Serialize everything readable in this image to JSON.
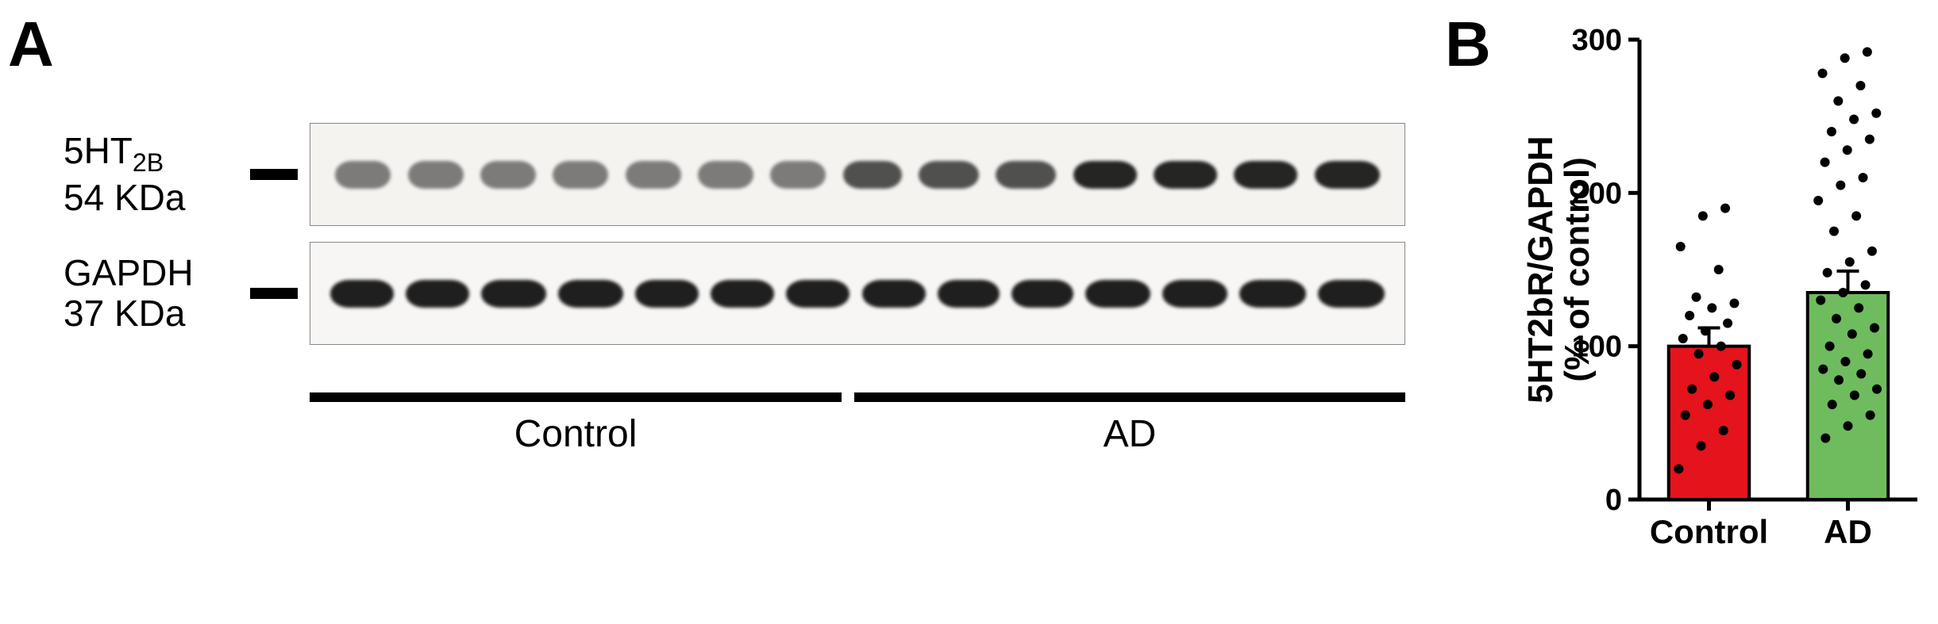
{
  "panelA": {
    "label": "A",
    "blots": [
      {
        "protein_html": "5HT<sub>2B</sub>",
        "mw": "54 KDa",
        "lane_count": 14,
        "intensities": [
          "light",
          "light",
          "light",
          "light",
          "light",
          "light",
          "light",
          "medium",
          "medium",
          "medium",
          "dark",
          "dark",
          "dark",
          "dark"
        ],
        "band_widths": [
          70,
          70,
          70,
          70,
          70,
          70,
          70,
          74,
          76,
          76,
          80,
          80,
          80,
          82
        ],
        "bg": "#f5f3f0",
        "band_color": "#1a1a1a"
      },
      {
        "protein_html": "GAPDH",
        "mw": "37 KDa",
        "lane_count": 14,
        "intensities": [
          "dark",
          "dark",
          "dark",
          "dark",
          "dark",
          "dark",
          "dark",
          "dark",
          "dark",
          "dark",
          "dark",
          "dark",
          "dark",
          "dark"
        ],
        "band_widths": [
          80,
          80,
          82,
          82,
          80,
          80,
          80,
          80,
          78,
          78,
          82,
          82,
          84,
          84
        ],
        "bg": "#f8f6f4",
        "band_color": "#141414"
      }
    ],
    "groups": [
      {
        "label": "Control",
        "lanes": 7,
        "line_width": 670,
        "label_offset": 250
      },
      {
        "label": "AD",
        "lanes": 7,
        "line_width": 694,
        "label_offset": 310
      }
    ]
  },
  "panelB": {
    "label": "B",
    "chart": {
      "type": "bar",
      "ylabel_line1": "5HT2bR/GAPDH",
      "ylabel_line2": "(% of control)",
      "ylim": [
        0,
        300
      ],
      "yticks": [
        0,
        100,
        200,
        300
      ],
      "categories": [
        "Control",
        "AD"
      ],
      "bars": [
        {
          "label": "Control",
          "value": 100,
          "error": 12,
          "fill": "#e4131c",
          "stroke": "#000000"
        },
        {
          "label": "AD",
          "value": 135,
          "error": 14,
          "fill": "#6fbc5e",
          "stroke": "#000000"
        }
      ],
      "scatter": {
        "Control": [
          20,
          35,
          45,
          55,
          62,
          68,
          72,
          80,
          88,
          95,
          100,
          105,
          110,
          115,
          120,
          125,
          128,
          132,
          150,
          165,
          185,
          190
        ],
        "AD": [
          40,
          48,
          55,
          62,
          68,
          72,
          78,
          82,
          85,
          90,
          95,
          100,
          108,
          112,
          118,
          125,
          130,
          135,
          140,
          148,
          155,
          162,
          175,
          185,
          195,
          205,
          210,
          220,
          228,
          235,
          240,
          248,
          252,
          260,
          270,
          278,
          288,
          292
        ]
      },
      "axis_color": "#000000",
      "tick_fontsize": 38,
      "label_fontsize": 44,
      "category_fontsize": 42,
      "background_color": "#ffffff",
      "bar_width": 0.58,
      "point_radius": 6,
      "point_color": "#000000",
      "axis_width": 5
    }
  }
}
